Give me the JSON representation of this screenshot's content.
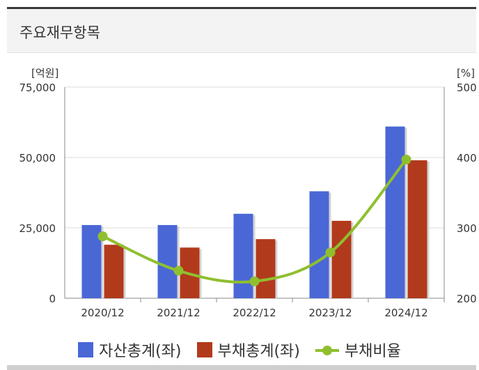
{
  "header": {
    "title": "주요재무항목"
  },
  "chart_data": {
    "type": "bar",
    "categories": [
      "2020/12",
      "2021/12",
      "2022/12",
      "2023/12",
      "2024/12"
    ],
    "series": [
      {
        "name": "자산총계(좌)",
        "type": "bar",
        "axis": "left",
        "color": "#4a67d6",
        "values": [
          26000,
          26000,
          30000,
          38000,
          61000
        ]
      },
      {
        "name": "부채총계(좌)",
        "type": "bar",
        "axis": "left",
        "color": "#b23a1c",
        "values": [
          19000,
          18000,
          21000,
          27500,
          49000
        ]
      },
      {
        "name": "부채비율",
        "type": "line",
        "axis": "right",
        "color": "#8fbf2f",
        "values": [
          288,
          239,
          224,
          265,
          397
        ]
      }
    ],
    "y_left": {
      "unit": "[억원]",
      "ylim": [
        0,
        75000
      ],
      "ticks": [
        0,
        25000,
        50000,
        75000
      ],
      "tick_labels": [
        "0",
        "25,000",
        "50,000",
        "75,000"
      ]
    },
    "y_right": {
      "unit": "[%]",
      "ylim": [
        200,
        500
      ],
      "ticks": [
        200,
        300,
        400,
        500
      ],
      "tick_labels": [
        "200",
        "300",
        "400",
        "500"
      ]
    },
    "grid": true,
    "legend": "bottom"
  }
}
